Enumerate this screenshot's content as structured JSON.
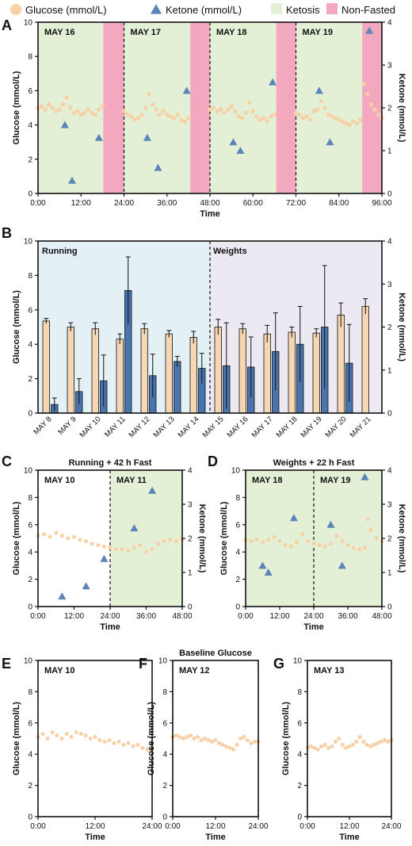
{
  "colors": {
    "glucose": "#f7d0a6",
    "glucose_bar": "#f5d7b4",
    "ketone": "#5b84b8",
    "ketone_bar": "#4a74ad",
    "ketosis": "#e3f0d6",
    "nonfasted": "#f4a8bf",
    "running_bg": "#e3f0f6",
    "weights_bg": "#ece9f2"
  },
  "legend": {
    "glucose": "Glucose (mmol/L)",
    "ketone": "Ketone (mmol/L)",
    "ketosis": "Ketosis",
    "nonfasted": "Non-Fasted"
  },
  "chart_data": [
    {
      "panel": "A",
      "type": "line",
      "xlabel": "Time",
      "ylabel": "Glucose (mmol/L)",
      "y2label": "Ketone (mmol/L)",
      "xlim": [
        0,
        96
      ],
      "ylim": [
        0,
        10
      ],
      "y2lim": [
        0,
        4
      ],
      "xticks": [
        "0:00",
        "12:00",
        "24:00",
        "36:00",
        "48:00",
        "60:00",
        "72:00",
        "84:00",
        "96:00"
      ],
      "yticks": [
        "0",
        "2",
        "4",
        "6",
        "8",
        "10"
      ],
      "y2ticks": [
        "0",
        "1",
        "2",
        "3",
        "4"
      ],
      "day_labels": [
        {
          "text": "MAY 16",
          "x": 0
        },
        {
          "text": "MAY 17",
          "x": 24
        },
        {
          "text": "MAY 18",
          "x": 48
        },
        {
          "text": "MAY 19",
          "x": 72
        }
      ],
      "day_dividers": [
        24,
        48,
        72
      ],
      "ketosis_regions": [
        [
          0,
          18.2
        ],
        [
          24,
          42.5
        ],
        [
          48,
          66.5
        ],
        [
          72,
          90.5
        ]
      ],
      "nonfasted_regions": [
        [
          18.2,
          24
        ],
        [
          42.5,
          48
        ],
        [
          66.5,
          72
        ],
        [
          90.5,
          96
        ]
      ],
      "glucose_segments": [
        {
          "x": [
            0,
            1,
            2,
            3,
            4,
            5,
            6,
            7,
            8,
            9,
            10,
            11,
            12,
            13,
            14,
            15,
            16,
            17,
            18
          ],
          "y": [
            5.0,
            5.1,
            4.9,
            5.2,
            5.0,
            4.8,
            4.9,
            5.2,
            5.6,
            5.0,
            4.7,
            4.8,
            4.6,
            4.7,
            4.9,
            4.7,
            4.6,
            4.9,
            5.1
          ]
        },
        {
          "x": [
            24,
            25,
            26,
            27,
            28,
            29,
            30,
            31,
            32,
            33,
            34,
            35,
            36,
            37,
            38,
            39,
            40,
            41,
            42
          ],
          "y": [
            4.8,
            4.6,
            4.5,
            4.3,
            4.4,
            4.6,
            5.0,
            5.8,
            5.2,
            4.9,
            4.6,
            4.8,
            4.6,
            4.5,
            4.4,
            4.6,
            4.3,
            4.2,
            4.4
          ]
        },
        {
          "x": [
            48,
            49,
            50,
            51,
            52,
            53,
            54,
            55,
            56,
            57,
            58,
            59,
            60,
            61,
            62,
            63,
            64,
            65,
            66
          ],
          "y": [
            4.9,
            5.0,
            4.8,
            4.9,
            4.7,
            4.9,
            5.1,
            4.8,
            4.5,
            4.4,
            4.7,
            5.3,
            4.8,
            4.5,
            4.3,
            4.4,
            4.2,
            4.5,
            4.6
          ]
        },
        {
          "x": [
            72,
            73,
            74,
            75,
            76,
            77,
            78,
            79,
            80,
            81,
            82,
            83,
            84,
            85,
            86,
            87,
            88,
            89,
            90
          ],
          "y": [
            4.7,
            4.6,
            4.4,
            4.5,
            4.3,
            4.8,
            4.9,
            5.4,
            5.0,
            4.6,
            4.5,
            4.4,
            4.3,
            4.2,
            4.1,
            4.0,
            4.2,
            4.1,
            4.3
          ]
        },
        {
          "x": [
            91,
            92,
            93,
            94,
            95,
            96
          ],
          "y": [
            6.4,
            5.8,
            5.2,
            4.9,
            4.6,
            4.4
          ]
        }
      ],
      "ketone_points": {
        "x": [
          7.5,
          9.5,
          17,
          30.5,
          33.5,
          41.5,
          54.5,
          56.5,
          65.5,
          78.5,
          81.5,
          92.5
        ],
        "y": [
          1.6,
          0.3,
          1.3,
          1.3,
          0.6,
          2.4,
          1.2,
          1.0,
          2.6,
          2.4,
          1.2,
          3.8
        ]
      }
    },
    {
      "panel": "B",
      "type": "bar",
      "ylabel": "Glucose (mmol/L)",
      "y2label": "Ketone (mmol/L)",
      "ylim": [
        0,
        10
      ],
      "y2lim": [
        0,
        4
      ],
      "yticks": [
        "0",
        "2",
        "4",
        "6",
        "8",
        "10"
      ],
      "y2ticks": [
        "0",
        "1",
        "2",
        "3",
        "4"
      ],
      "categories": [
        "MAY 8",
        "MAY 9",
        "MAY 10",
        "MAY 11",
        "MAY 12",
        "MAY 13",
        "MAY 14",
        "MAY 15",
        "MAY 16",
        "MAY 17",
        "MAY 18",
        "MAY 19",
        "MAY 20",
        "MAY 21"
      ],
      "group_labels": [
        "Running",
        "Weights"
      ],
      "series": [
        {
          "name": "Glucose (mmol/L)",
          "axis": "left",
          "values": [
            5.35,
            5.0,
            4.9,
            4.3,
            4.9,
            4.6,
            4.4,
            5.0,
            4.9,
            4.6,
            4.7,
            4.65,
            5.7,
            6.2
          ],
          "errors": [
            0.15,
            0.25,
            0.35,
            0.3,
            0.3,
            0.2,
            0.35,
            0.45,
            0.3,
            0.5,
            0.3,
            0.25,
            0.7,
            0.45
          ]
        },
        {
          "name": "Ketone (mmol/L)",
          "axis": "right",
          "values": [
            0.2,
            0.5,
            0.75,
            2.85,
            0.87,
            1.2,
            1.04,
            1.1,
            1.07,
            1.43,
            1.6,
            2.0,
            1.16,
            null
          ],
          "errors": [
            0.15,
            0.3,
            0.6,
            0.78,
            0.5,
            0.12,
            0.35,
            1.0,
            0.7,
            0.9,
            0.88,
            1.43,
            0.9,
            null
          ]
        }
      ]
    },
    {
      "panel": "C",
      "type": "line",
      "title": "Running + 42 h Fast",
      "xlabel": "Time",
      "ylabel": "Glucose (mmol/L)",
      "y2label": "Ketone (mmol/L)",
      "xlim": [
        0,
        48
      ],
      "ylim": [
        0,
        10
      ],
      "y2lim": [
        0,
        4
      ],
      "xticks": [
        "0:00",
        "12:00",
        "24:00",
        "36:00",
        "48:00"
      ],
      "yticks": [
        "0",
        "2",
        "4",
        "6",
        "8",
        "10"
      ],
      "y2ticks": [
        "0",
        "1",
        "2",
        "3",
        "4"
      ],
      "day_labels": [
        {
          "text": "MAY 10",
          "x": 0
        },
        {
          "text": "MAY 11",
          "x": 24
        }
      ],
      "day_dividers": [
        24
      ],
      "ketosis_regions": [
        [
          24,
          48
        ]
      ],
      "nonfasted_regions": [],
      "glucose_segments": [
        {
          "x": [
            0,
            2,
            4,
            6,
            8,
            10,
            12,
            14,
            16,
            18,
            20,
            22,
            24,
            26,
            28,
            30,
            32,
            34,
            36,
            38,
            40,
            42,
            44,
            46,
            48
          ],
          "y": [
            5.2,
            5.3,
            5.1,
            5.4,
            5.2,
            5.0,
            5.1,
            4.9,
            4.8,
            4.6,
            4.5,
            4.4,
            4.3,
            4.2,
            4.2,
            4.1,
            4.3,
            4.5,
            4.0,
            4.2,
            4.6,
            4.8,
            4.9,
            4.8,
            4.9
          ]
        }
      ],
      "ketone_points": {
        "x": [
          8,
          16,
          22,
          32,
          38
        ],
        "y": [
          0.3,
          0.6,
          1.4,
          2.3,
          3.4
        ]
      }
    },
    {
      "panel": "D",
      "type": "line",
      "title": "Weights + 22 h Fast",
      "xlabel": "Time",
      "ylabel": "Glucose (mmol/L)",
      "y2label": "Ketone (mmol/L)",
      "xlim": [
        0,
        48
      ],
      "ylim": [
        0,
        10
      ],
      "y2lim": [
        0,
        4
      ],
      "xticks": [
        "0:00",
        "12:00",
        "24:00",
        "36:00",
        "48:00"
      ],
      "yticks": [
        "0",
        "2",
        "4",
        "6",
        "8",
        "10"
      ],
      "y2ticks": [
        "0",
        "1",
        "2",
        "3",
        "4"
      ],
      "day_labels": [
        {
          "text": "MAY 18",
          "x": 0
        },
        {
          "text": "MAY 19",
          "x": 24
        }
      ],
      "day_dividers": [
        24
      ],
      "ketosis_regions": [
        [
          0,
          48
        ]
      ],
      "nonfasted_regions": [],
      "glucose_segments": [
        {
          "x": [
            0,
            2,
            4,
            6,
            8,
            10,
            12,
            14,
            16,
            18,
            20,
            22,
            24,
            26,
            28,
            30,
            32,
            34,
            36,
            38,
            40,
            42,
            43,
            44,
            46,
            48
          ],
          "y": [
            4.9,
            4.8,
            4.9,
            4.7,
            4.9,
            5.1,
            4.8,
            4.5,
            4.4,
            4.7,
            5.3,
            4.8,
            4.6,
            4.5,
            4.4,
            4.6,
            5.2,
            4.8,
            4.5,
            4.3,
            4.2,
            4.3,
            6.4,
            5.6,
            5.0,
            4.8
          ]
        }
      ],
      "ketone_points": {
        "x": [
          6,
          8,
          17,
          30,
          34,
          42
        ],
        "y": [
          1.2,
          1.0,
          2.6,
          2.4,
          1.2,
          3.8
        ]
      }
    },
    {
      "panel": "E",
      "type": "line",
      "xlabel": "Time",
      "ylabel": "Glucose (mmol/L)",
      "xlim": [
        0,
        24
      ],
      "ylim": [
        0,
        10
      ],
      "xticks": [
        "0:00",
        "12:00",
        "24:00"
      ],
      "yticks": [
        "0",
        "2",
        "4",
        "6",
        "8",
        "10"
      ],
      "day_labels": [
        {
          "text": "MAY 10",
          "x": 0
        }
      ],
      "glucose_segments": [
        {
          "x": [
            0,
            1,
            2,
            3,
            4,
            5,
            6,
            7,
            8,
            9,
            10,
            11,
            12,
            13,
            14,
            15,
            16,
            17,
            18,
            19,
            20,
            21,
            22,
            23,
            24
          ],
          "y": [
            5.1,
            5.3,
            5.0,
            5.4,
            5.2,
            5.0,
            5.3,
            5.1,
            5.4,
            5.3,
            5.2,
            5.0,
            5.1,
            4.9,
            4.8,
            4.9,
            4.7,
            4.8,
            4.6,
            4.7,
            4.5,
            4.6,
            4.4,
            4.3,
            4.3
          ]
        }
      ]
    },
    {
      "panel": "F",
      "type": "line",
      "title": "Baseline Glucose",
      "xlabel": "Time",
      "ylabel": "Glucose (mmol/L)",
      "xlim": [
        0,
        24
      ],
      "ylim": [
        0,
        10
      ],
      "xticks": [
        "0:00",
        "12:00",
        "24:00"
      ],
      "yticks": [
        "0",
        "2",
        "4",
        "6",
        "8",
        "10"
      ],
      "day_labels": [
        {
          "text": "MAY 12",
          "x": 0
        }
      ],
      "glucose_segments": [
        {
          "x": [
            0,
            1,
            2,
            3,
            4,
            5,
            6,
            7,
            8,
            9,
            10,
            11,
            12,
            13,
            14,
            15,
            16,
            17,
            18,
            19,
            20,
            21,
            22,
            23,
            24
          ],
          "y": [
            5.1,
            5.2,
            5.1,
            5.0,
            5.1,
            5.2,
            5.0,
            5.1,
            4.9,
            5.0,
            4.9,
            4.8,
            4.9,
            4.7,
            4.6,
            4.5,
            4.4,
            4.3,
            4.6,
            5.0,
            5.1,
            4.9,
            4.7,
            4.8,
            4.8
          ]
        }
      ]
    },
    {
      "panel": "G",
      "type": "line",
      "xlabel": "Time",
      "ylabel": "Glucose (mmol/L)",
      "xlim": [
        0,
        24
      ],
      "ylim": [
        0,
        10
      ],
      "xticks": [
        "0:00",
        "12:00",
        "24:00"
      ],
      "yticks": [
        "0",
        "2",
        "4",
        "6",
        "8",
        "10"
      ],
      "day_labels": [
        {
          "text": "MAY 13",
          "x": 0
        }
      ],
      "glucose_segments": [
        {
          "x": [
            0,
            1,
            2,
            3,
            4,
            5,
            6,
            7,
            8,
            9,
            10,
            11,
            12,
            13,
            14,
            15,
            16,
            17,
            18,
            19,
            20,
            21,
            22,
            23,
            24
          ],
          "y": [
            4.4,
            4.5,
            4.4,
            4.3,
            4.5,
            4.6,
            4.4,
            4.5,
            4.8,
            5.0,
            4.6,
            4.4,
            4.5,
            4.6,
            4.8,
            5.1,
            4.8,
            4.6,
            4.5,
            4.6,
            4.7,
            4.8,
            4.9,
            4.8,
            4.9
          ]
        }
      ]
    }
  ]
}
